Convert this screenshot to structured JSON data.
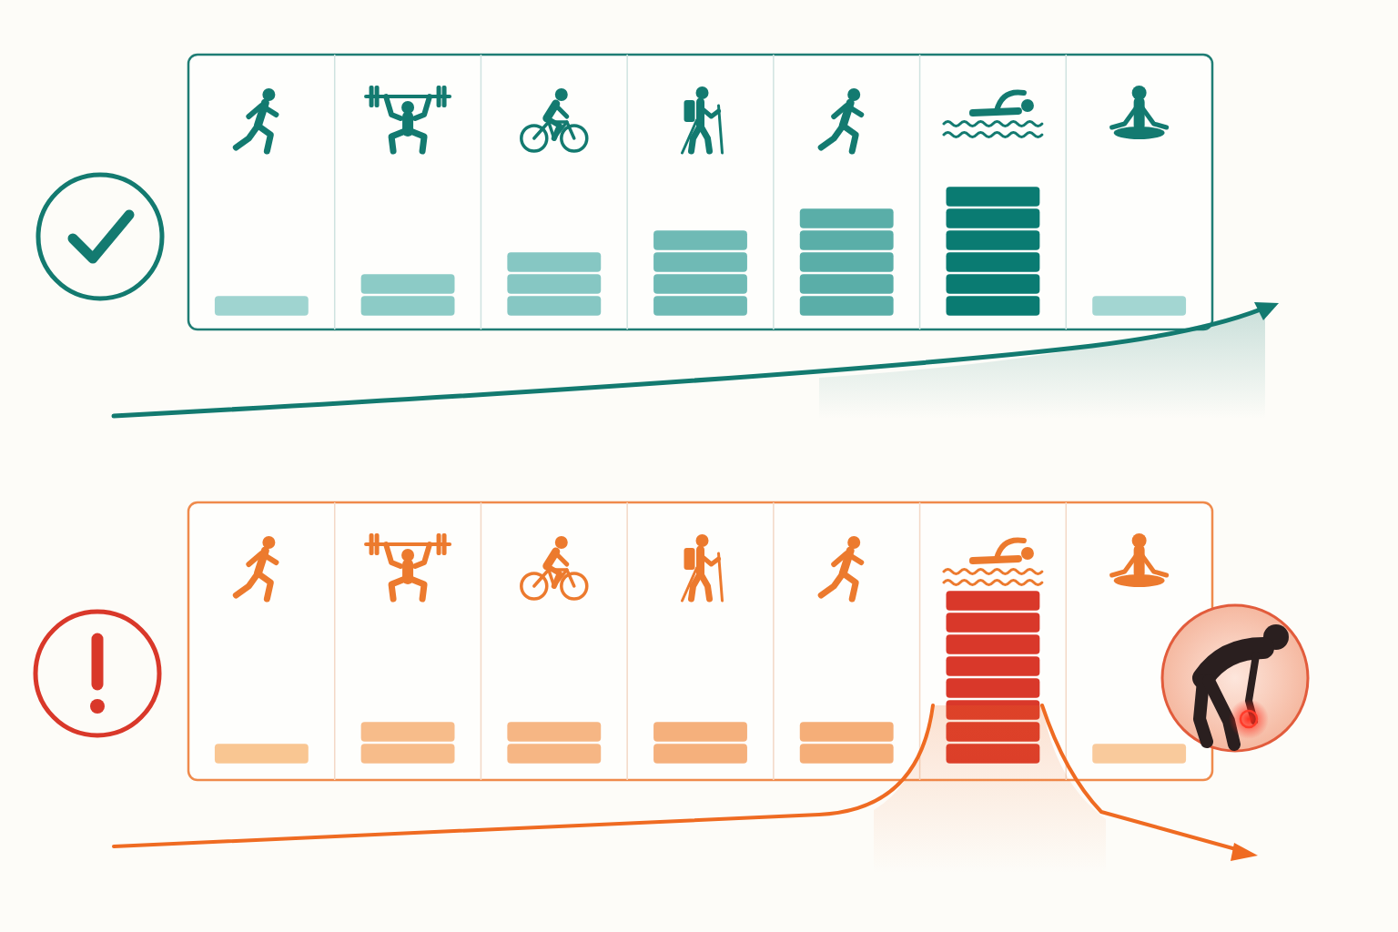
{
  "chart_data": [
    {
      "type": "bar",
      "categories": [
        null,
        null,
        null,
        null,
        null,
        null,
        null
      ],
      "values": [
        1,
        2,
        3,
        4,
        5,
        6,
        1
      ],
      "colors": [
        "#9fd4d0",
        "#8ccbc6",
        "#86c7c3",
        "#6fbab5",
        "#5aaea8",
        "#0a7b72",
        "#a3d6d2"
      ],
      "ylim": [
        0,
        12
      ],
      "tick_labels": false
    },
    {
      "type": "bar",
      "categories": [
        null,
        null,
        null,
        null,
        null,
        null,
        null
      ],
      "values": [
        1,
        2,
        2,
        2,
        2,
        8,
        1
      ],
      "colors": [
        "#f9c692",
        "#f7bc8a",
        "#f6b684",
        "#f5b07c",
        "#f5ae78",
        "#d9382a",
        "#f9ca9c"
      ],
      "ylim": [
        0,
        12
      ],
      "tick_labels": false
    }
  ]
}
